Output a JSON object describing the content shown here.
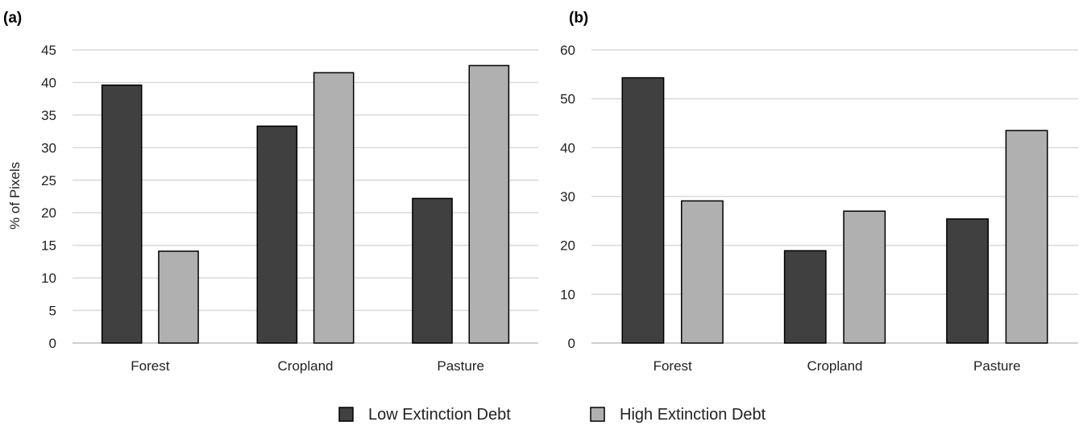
{
  "chart_data": [
    {
      "type": "bar",
      "panel_label": "(a)",
      "categories": [
        "Forest",
        "Cropland",
        "Pasture"
      ],
      "ylabel": "% of Pixels",
      "ylim": [
        0,
        45
      ],
      "yticks": [
        0,
        5,
        10,
        15,
        20,
        25,
        30,
        35,
        40,
        45
      ],
      "grid": true,
      "series": [
        {
          "name": "Low Extinction Debt",
          "values": [
            39.6,
            33.3,
            22.2
          ],
          "color": "#404040"
        },
        {
          "name": "High Extinction Debt",
          "values": [
            14.1,
            41.5,
            42.6
          ],
          "color": "#b0b0b0"
        }
      ]
    },
    {
      "type": "bar",
      "panel_label": "(b)",
      "categories": [
        "Forest",
        "Cropland",
        "Pasture"
      ],
      "ylabel": "",
      "ylim": [
        0,
        60
      ],
      "yticks": [
        0,
        10,
        20,
        30,
        40,
        50,
        60
      ],
      "grid": true,
      "series": [
        {
          "name": "Low Extinction Debt",
          "values": [
            54.3,
            18.9,
            25.4
          ],
          "color": "#404040"
        },
        {
          "name": "High Extinction Debt",
          "values": [
            29.1,
            27.0,
            43.5
          ],
          "color": "#b0b0b0"
        }
      ]
    }
  ],
  "legend": {
    "placement": "bottom-center",
    "items": [
      {
        "label": "Low Extinction Debt",
        "color": "#404040"
      },
      {
        "label": "High Extinction Debt",
        "color": "#b0b0b0"
      }
    ]
  }
}
